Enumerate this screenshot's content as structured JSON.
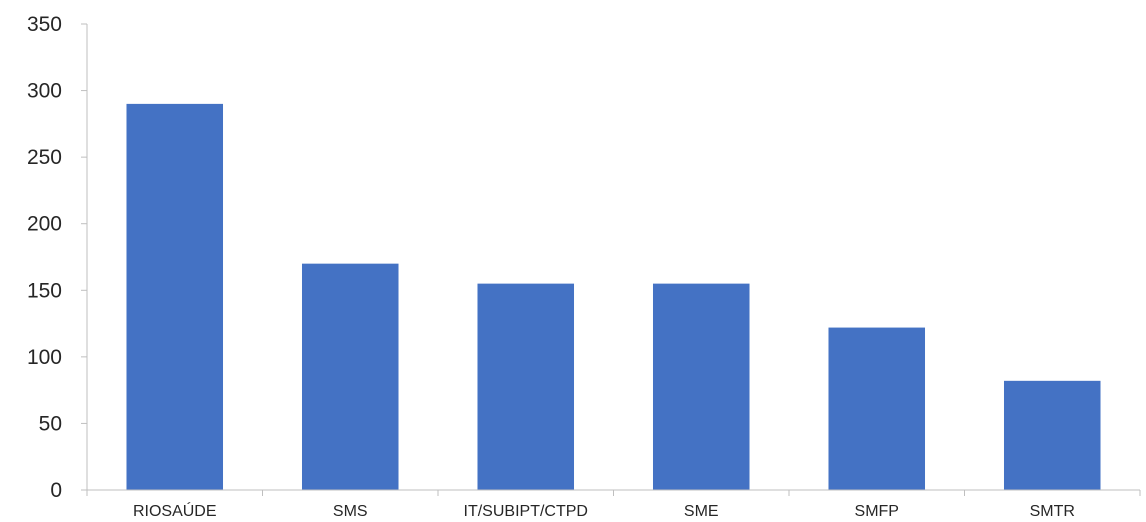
{
  "chart_data": {
    "type": "bar",
    "title": "",
    "xlabel": "",
    "ylabel": "",
    "categories": [
      "RIOSAÚDE",
      "SMS",
      "IT/SUBIPT/CTPD",
      "SME",
      "SMFP",
      "SMTR"
    ],
    "values": [
      290,
      170,
      155,
      155,
      122,
      82
    ],
    "ylim": [
      0,
      350
    ],
    "yticks": [
      0,
      50,
      100,
      150,
      200,
      250,
      300,
      350
    ],
    "ytick_labels": [
      "0",
      "50",
      "100",
      "150",
      "200",
      "250",
      "300",
      "350"
    ],
    "grid": false,
    "legend": "none",
    "bar_color": "#4472C4",
    "axis_color": "#BFBFBF"
  }
}
